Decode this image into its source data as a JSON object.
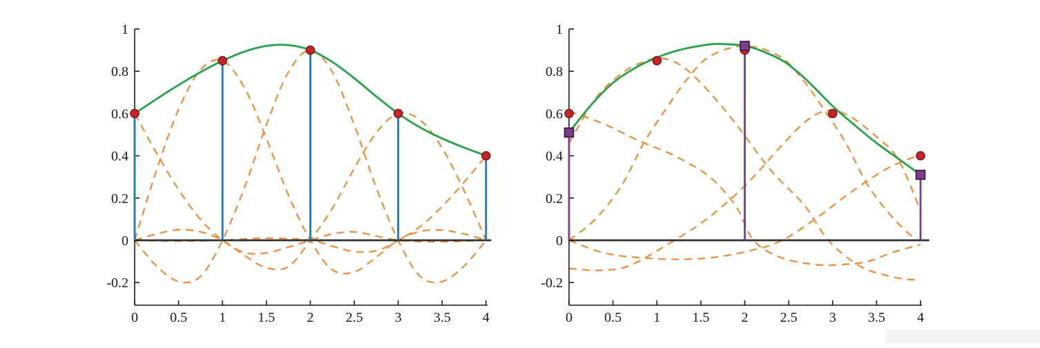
{
  "page": {
    "background": "#ffffff",
    "artifact_strip_color": "#f3f3f3"
  },
  "colors": {
    "curve_green": "#2ba24b",
    "basis_orange": "#ee8f3e",
    "stem_blue": "#1f77b4",
    "stem_purple": "#7d3c8e",
    "square_edge": "#2e1838",
    "dot_red": "#c5262c",
    "dot_edge": "#7e1317",
    "zero_line": "#2f2f2f",
    "axis": "#1a1a1a",
    "tick_text": "#1a1a1a"
  },
  "chart_data": [
    {
      "name": "interpolation-panel",
      "type": "line",
      "title": "",
      "xlabel": "",
      "ylabel": "",
      "xlim": [
        0,
        4.07
      ],
      "ylim": [
        -0.307,
        1
      ],
      "grid": false,
      "legend": null,
      "xticks": {
        "values": [
          0,
          0.5,
          1,
          1.5,
          2,
          2.5,
          3,
          3.5,
          4
        ],
        "labels": [
          "0",
          "0.5",
          "1",
          "1.5",
          "2",
          "2.5",
          "3",
          "3.5",
          "4"
        ]
      },
      "yticks": {
        "values": [
          -0.2,
          0,
          0.2,
          0.4,
          0.6,
          0.8,
          1
        ],
        "labels": [
          "-0.2",
          "0",
          "0.2",
          "0.4",
          "0.6",
          "0.8",
          "1"
        ]
      },
      "zero_line_extent": 4.06,
      "data_points": {
        "marker": "circle",
        "xy": [
          [
            0,
            0.6
          ],
          [
            1,
            0.85
          ],
          [
            2,
            0.9
          ],
          [
            3,
            0.6
          ],
          [
            4,
            0.4
          ]
        ]
      },
      "stems": {
        "style": "blue",
        "marker": null,
        "xy": [
          [
            0,
            0.6
          ],
          [
            1,
            0.85
          ],
          [
            2,
            0.9
          ],
          [
            3,
            0.6
          ],
          [
            4,
            0.4
          ]
        ]
      },
      "control_points": null,
      "series": [
        {
          "name": "spline-interpolant",
          "role": "sum",
          "dash": false,
          "points": [
            [
              0,
              0.6
            ],
            [
              0.25,
              0.669
            ],
            [
              0.5,
              0.735
            ],
            [
              0.75,
              0.796
            ],
            [
              1,
              0.85
            ],
            [
              1.25,
              0.893
            ],
            [
              1.5,
              0.92
            ],
            [
              1.75,
              0.924
            ],
            [
              2,
              0.9
            ],
            [
              2.25,
              0.844
            ],
            [
              2.5,
              0.767
            ],
            [
              2.75,
              0.681
            ],
            [
              3,
              0.6
            ],
            [
              3.25,
              0.534
            ],
            [
              3.5,
              0.482
            ],
            [
              3.75,
              0.439
            ],
            [
              4,
              0.4
            ]
          ]
        },
        {
          "name": "scaled-basis-0",
          "role": "basis",
          "dash": true,
          "points": [
            [
              0,
              0.6
            ],
            [
              0.25,
              0.412
            ],
            [
              0.5,
              0.24
            ],
            [
              0.75,
              0.098
            ],
            [
              1,
              0
            ],
            [
              1.25,
              -0.058
            ],
            [
              1.5,
              -0.06
            ],
            [
              1.75,
              -0.032
            ],
            [
              2,
              0
            ],
            [
              2.25,
              0.03
            ],
            [
              2.5,
              0.04
            ],
            [
              2.75,
              0.02
            ],
            [
              3,
              0
            ],
            [
              3.25,
              -0.006
            ],
            [
              3.5,
              -0.007
            ],
            [
              3.75,
              -0.004
            ],
            [
              4,
              0
            ]
          ]
        },
        {
          "name": "scaled-basis-1",
          "role": "basis",
          "dash": true,
          "points": [
            [
              0,
              0
            ],
            [
              0.25,
              0.333
            ],
            [
              0.5,
              0.619
            ],
            [
              0.75,
              0.807
            ],
            [
              1,
              0.85
            ],
            [
              1.25,
              0.722
            ],
            [
              1.5,
              0.482
            ],
            [
              1.75,
              0.214
            ],
            [
              2,
              0
            ],
            [
              2.25,
              -0.14
            ],
            [
              2.5,
              -0.15
            ],
            [
              2.75,
              -0.08
            ],
            [
              3,
              0
            ],
            [
              3.25,
              0.042
            ],
            [
              3.5,
              0.048
            ],
            [
              3.75,
              0.03
            ],
            [
              4,
              0
            ]
          ]
        },
        {
          "name": "scaled-basis-2",
          "role": "basis",
          "dash": true,
          "points": [
            [
              0,
              0
            ],
            [
              0.25,
              -0.122
            ],
            [
              0.5,
              -0.195
            ],
            [
              0.75,
              -0.171
            ],
            [
              1,
              0
            ],
            [
              1.25,
              0.249
            ],
            [
              1.5,
              0.546
            ],
            [
              1.75,
              0.796
            ],
            [
              2,
              0.9
            ],
            [
              2.25,
              0.796
            ],
            [
              2.5,
              0.546
            ],
            [
              2.75,
              0.249
            ],
            [
              3,
              0
            ],
            [
              3.25,
              -0.171
            ],
            [
              3.5,
              -0.195
            ],
            [
              3.75,
              -0.122
            ],
            [
              4,
              0
            ]
          ]
        },
        {
          "name": "scaled-basis-3",
          "role": "basis",
          "dash": true,
          "points": [
            [
              0,
              0
            ],
            [
              0.25,
              0.03
            ],
            [
              0.5,
              0.05
            ],
            [
              0.75,
              0.04
            ],
            [
              1,
              0
            ],
            [
              1.25,
              -0.072
            ],
            [
              1.5,
              -0.13
            ],
            [
              1.75,
              -0.125
            ],
            [
              2,
              0
            ],
            [
              2.25,
              0.151
            ],
            [
              2.5,
              0.34
            ],
            [
              2.75,
              0.509
            ],
            [
              3,
              0.6
            ],
            [
              3.25,
              0.569
            ],
            [
              3.5,
              0.437
            ],
            [
              3.75,
              0.235
            ],
            [
              4,
              0
            ]
          ]
        },
        {
          "name": "scaled-basis-4",
          "role": "basis",
          "dash": true,
          "points": [
            [
              0,
              0
            ],
            [
              0.5,
              -0.004
            ],
            [
              1,
              0
            ],
            [
              1.5,
              0.01
            ],
            [
              2,
              0
            ],
            [
              2.25,
              -0.028
            ],
            [
              2.5,
              -0.053
            ],
            [
              2.75,
              -0.05
            ],
            [
              3,
              0
            ],
            [
              3.25,
              0.065
            ],
            [
              3.5,
              0.16
            ],
            [
              3.75,
              0.275
            ],
            [
              4,
              0.4
            ]
          ]
        }
      ]
    },
    {
      "name": "approximation-panel",
      "type": "line",
      "title": "",
      "xlabel": "",
      "ylabel": "",
      "xlim": [
        0,
        4.1
      ],
      "ylim": [
        -0.307,
        1
      ],
      "grid": false,
      "legend": null,
      "xticks": {
        "values": [
          0,
          0.5,
          1,
          1.5,
          2,
          2.5,
          3,
          3.5,
          4
        ],
        "labels": [
          "0",
          "0.5",
          "1",
          "1.5",
          "2",
          "2.5",
          "3",
          "3.5",
          "4"
        ]
      },
      "yticks": {
        "values": [
          -0.2,
          0,
          0.2,
          0.4,
          0.6,
          0.8,
          1
        ],
        "labels": [
          "-0.2",
          "0",
          "0.2",
          "0.4",
          "0.6",
          "0.8",
          "1"
        ]
      },
      "zero_line_extent": 4.1,
      "data_points": {
        "marker": "circle",
        "xy": [
          [
            0,
            0.6
          ],
          [
            1,
            0.85
          ],
          [
            2,
            0.9
          ],
          [
            3,
            0.6
          ],
          [
            4,
            0.4
          ]
        ]
      },
      "stems": {
        "style": "purple",
        "marker": "square",
        "xy": [
          [
            0,
            0.51
          ],
          [
            2,
            0.92
          ],
          [
            4,
            0.31
          ]
        ]
      },
      "control_points": {
        "marker": "square",
        "xy": [
          [
            0,
            0.51
          ],
          [
            2,
            0.92
          ],
          [
            4,
            0.31
          ]
        ]
      },
      "series": [
        {
          "name": "approximant",
          "role": "sum",
          "dash": false,
          "points": [
            [
              0,
              0.51
            ],
            [
              0.25,
              0.64
            ],
            [
              0.5,
              0.745
            ],
            [
              0.75,
              0.815
            ],
            [
              1,
              0.865
            ],
            [
              1.25,
              0.9
            ],
            [
              1.6,
              0.927
            ],
            [
              1.8,
              0.928
            ],
            [
              2,
              0.92
            ],
            [
              2.2,
              0.895
            ],
            [
              2.45,
              0.845
            ],
            [
              2.7,
              0.76
            ],
            [
              3,
              0.635
            ],
            [
              3.25,
              0.545
            ],
            [
              3.5,
              0.46
            ],
            [
              3.75,
              0.385
            ],
            [
              4,
              0.31
            ]
          ]
        },
        {
          "name": "scaled-basis-0",
          "role": "basis",
          "dash": true,
          "points": [
            [
              0,
              0.61
            ],
            [
              0.4,
              0.55
            ],
            [
              0.8,
              0.47
            ],
            [
              1.2,
              0.4
            ],
            [
              1.6,
              0.3
            ],
            [
              1.9,
              0.16
            ],
            [
              2.1,
              0
            ],
            [
              2.4,
              -0.08
            ],
            [
              2.8,
              -0.115
            ],
            [
              3.1,
              -0.115
            ],
            [
              3.4,
              -0.1
            ],
            [
              3.7,
              -0.055
            ],
            [
              4,
              -0.02
            ]
          ]
        },
        {
          "name": "scaled-basis-1",
          "role": "basis",
          "dash": true,
          "points": [
            [
              0,
              0.46
            ],
            [
              0.3,
              0.67
            ],
            [
              0.6,
              0.79
            ],
            [
              0.85,
              0.845
            ],
            [
              1.05,
              0.862
            ],
            [
              1.3,
              0.82
            ],
            [
              1.6,
              0.7
            ],
            [
              1.9,
              0.55
            ],
            [
              2.3,
              0.33
            ],
            [
              2.68,
              0.165
            ],
            [
              2.95,
              0
            ],
            [
              3.3,
              -0.12
            ],
            [
              3.6,
              -0.165
            ],
            [
              3.85,
              -0.185
            ],
            [
              4,
              -0.185
            ]
          ]
        },
        {
          "name": "scaled-basis-2",
          "role": "basis",
          "dash": true,
          "points": [
            [
              0,
              0
            ],
            [
              0.3,
              0.1
            ],
            [
              0.6,
              0.26
            ],
            [
              0.85,
              0.46
            ],
            [
              1.1,
              0.62
            ],
            [
              1.34,
              0.76
            ],
            [
              1.6,
              0.87
            ],
            [
              2,
              0.92
            ],
            [
              2.4,
              0.87
            ],
            [
              2.66,
              0.76
            ],
            [
              2.9,
              0.62
            ],
            [
              3.15,
              0.46
            ],
            [
              3.4,
              0.26
            ],
            [
              3.7,
              0.1
            ],
            [
              3.95,
              0
            ]
          ]
        },
        {
          "name": "scaled-basis-3",
          "role": "basis",
          "dash": true,
          "points": [
            [
              0,
              -0.133
            ],
            [
              0.35,
              -0.142
            ],
            [
              0.7,
              -0.118
            ],
            [
              1.2,
              0
            ],
            [
              1.5,
              0.08
            ],
            [
              1.8,
              0.18
            ],
            [
              2.1,
              0.3
            ],
            [
              2.4,
              0.44
            ],
            [
              2.7,
              0.565
            ],
            [
              2.95,
              0.615
            ],
            [
              3.2,
              0.585
            ],
            [
              3.5,
              0.49
            ],
            [
              3.75,
              0.38
            ],
            [
              4,
              0.14
            ]
          ]
        },
        {
          "name": "scaled-basis-4",
          "role": "basis",
          "dash": true,
          "points": [
            [
              0,
              0
            ],
            [
              0.4,
              -0.06
            ],
            [
              0.8,
              -0.082
            ],
            [
              1.2,
              -0.09
            ],
            [
              1.6,
              -0.083
            ],
            [
              2,
              -0.055
            ],
            [
              2.4,
              -0.005
            ],
            [
              2.8,
              0.1
            ],
            [
              3.2,
              0.225
            ],
            [
              3.6,
              0.335
            ],
            [
              3.9,
              0.39
            ],
            [
              4,
              0.4
            ]
          ]
        }
      ]
    }
  ]
}
